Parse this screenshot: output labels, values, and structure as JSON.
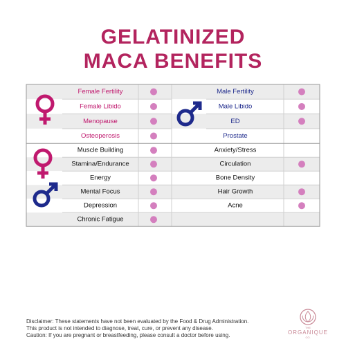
{
  "title": [
    "GELATINIZED",
    "MACA BENEFITS"
  ],
  "female": [
    {
      "label": "Female Fertility",
      "dot": true
    },
    {
      "label": "Female Libido",
      "dot": true
    },
    {
      "label": "Menopause",
      "dot": true
    },
    {
      "label": "Osteoperosis",
      "dot": true
    }
  ],
  "male": [
    {
      "label": "Male Fertility",
      "dot": true
    },
    {
      "label": "Male Libido",
      "dot": true
    },
    {
      "label": "ED",
      "dot": true
    },
    {
      "label": "Prostate",
      "dot": false
    }
  ],
  "both": [
    {
      "label": "Muscle Building",
      "dot": true
    },
    {
      "label": "Stamina/Endurance",
      "dot": true
    },
    {
      "label": "Energy",
      "dot": true
    },
    {
      "label": "Mental Focus",
      "dot": true
    },
    {
      "label": "Depression",
      "dot": true
    },
    {
      "label": "Chronic Fatigue",
      "dot": true
    }
  ],
  "other": [
    {
      "label": "Anxiety/Stress",
      "dot": false
    },
    {
      "label": "Circulation",
      "dot": true
    },
    {
      "label": "Bone Density",
      "dot": false
    },
    {
      "label": "Hair Growth",
      "dot": true
    },
    {
      "label": "Acne",
      "dot": true
    }
  ],
  "disclaimer": [
    "Disclaimer: These statements have not been evaluated by the Food & Drug Administration.",
    "This product is not intended to diagnose, treat, cure, or prevent any disease.",
    "Caution: If you are pregnant or breastfeeding, please consult a doctor before using."
  ],
  "logo": {
    "top": "THE",
    "name": "ORGANIQUE",
    "bottom": "CO."
  }
}
